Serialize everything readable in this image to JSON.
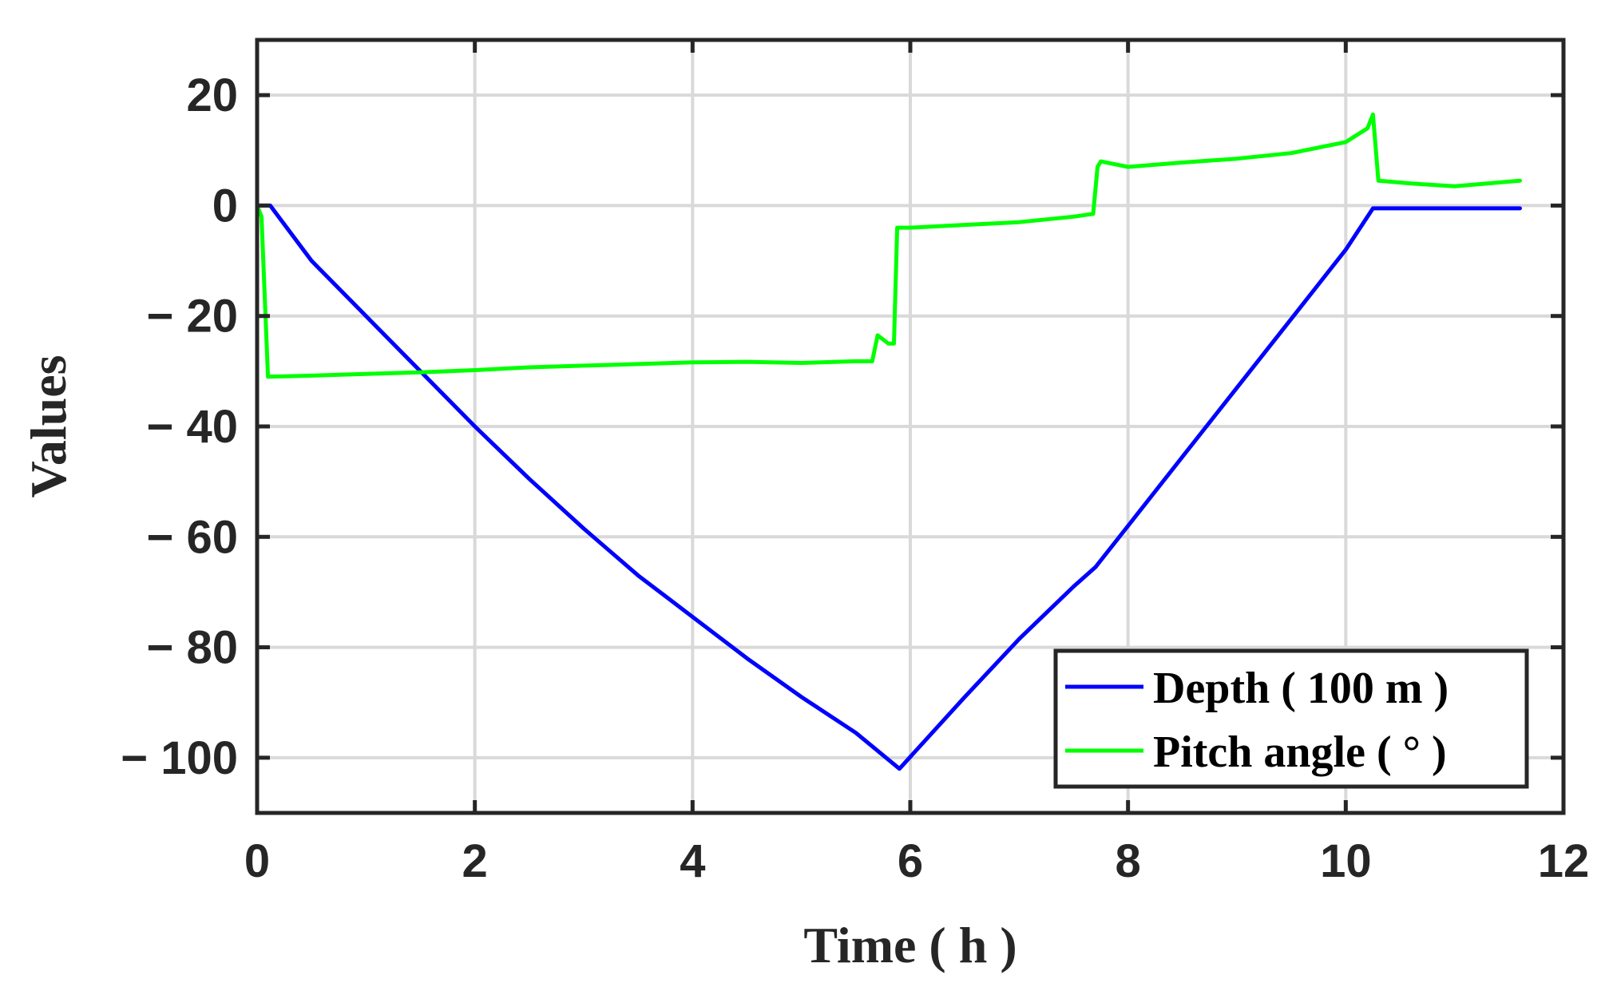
{
  "chart_data": {
    "type": "line",
    "title": "",
    "xlabel": "Time ( h )",
    "ylabel": "Values",
    "xlim": [
      0,
      12
    ],
    "ylim": [
      -110,
      30
    ],
    "xticks": [
      0,
      2,
      4,
      6,
      8,
      10,
      12
    ],
    "yticks": [
      20,
      0,
      -20,
      -40,
      -60,
      -80,
      -100
    ],
    "xtick_labels": [
      "0",
      "2",
      "4",
      "6",
      "8",
      "10",
      "12"
    ],
    "ytick_labels": [
      "20",
      "0",
      "− 20",
      "− 40",
      "− 60",
      "− 80",
      "− 100"
    ],
    "grid": true,
    "legend_position": "bottom-right",
    "series": [
      {
        "name": "Depth ( 100 m )",
        "color": "#0000ff",
        "x": [
          0.0,
          0.12,
          0.5,
          1.0,
          1.5,
          2.0,
          2.5,
          3.0,
          3.5,
          3.8,
          4.0,
          4.5,
          5.0,
          5.5,
          5.9,
          6.5,
          7.0,
          7.5,
          7.7,
          8.0,
          8.5,
          9.0,
          9.5,
          10.0,
          10.25,
          10.5,
          11.0,
          11.6
        ],
        "values": [
          0,
          0,
          -10,
          -20,
          -30,
          -40,
          -49.5,
          -58.5,
          -67,
          -71.5,
          -74.5,
          -82,
          -89,
          -95.5,
          -102,
          -89,
          -78.5,
          -69,
          -65.5,
          -58,
          -45.5,
          -33,
          -20.5,
          -8,
          -0.5,
          -0.5,
          -0.5,
          -0.5
        ]
      },
      {
        "name": "Pitch angle ( ° )",
        "color": "#00ff00",
        "x": [
          0.0,
          0.04,
          0.1,
          0.5,
          1.0,
          1.5,
          2.0,
          2.5,
          3.0,
          3.5,
          4.0,
          4.5,
          5.0,
          5.5,
          5.65,
          5.7,
          5.8,
          5.85,
          5.88,
          6.0,
          6.5,
          7.0,
          7.5,
          7.68,
          7.72,
          7.75,
          8.0,
          8.5,
          9.0,
          9.5,
          10.0,
          10.2,
          10.25,
          10.3,
          10.6,
          11.0,
          11.6
        ],
        "values": [
          0,
          -2,
          -31,
          -30.8,
          -30.5,
          -30.2,
          -29.8,
          -29.3,
          -29,
          -28.7,
          -28.4,
          -28.3,
          -28.5,
          -28.2,
          -28.2,
          -23.5,
          -25,
          -25,
          -4,
          -4,
          -3.5,
          -3,
          -2,
          -1.5,
          7,
          8,
          7,
          7.8,
          8.5,
          9.5,
          11.5,
          14,
          16.5,
          4.5,
          4,
          3.5,
          4.5
        ]
      }
    ]
  }
}
